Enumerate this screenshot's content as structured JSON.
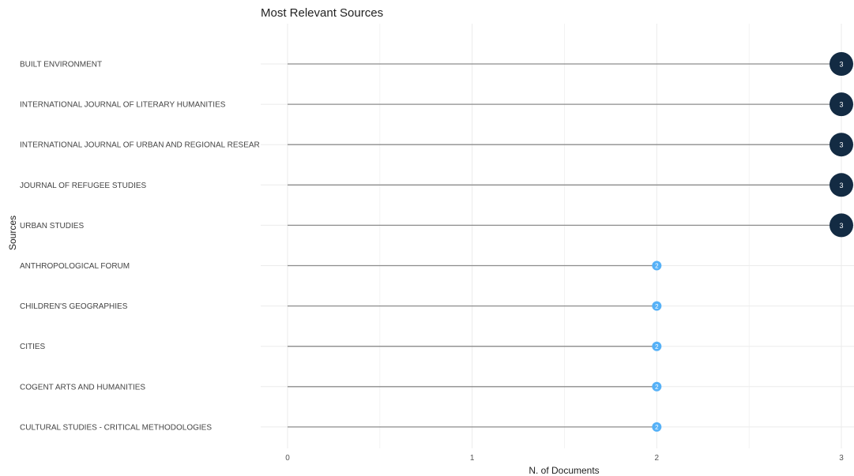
{
  "chart_data": {
    "type": "lollipop",
    "title": "Most Relevant Sources",
    "xlabel": "N. of Documents",
    "ylabel": "Sources",
    "xlim": [
      0,
      3
    ],
    "xticks": [
      "0",
      "1",
      "2",
      "3"
    ],
    "grid": true,
    "legend": "none",
    "colors": {
      "low": "#56b1f7",
      "high": "#132b43",
      "stem": "#8c8c8c",
      "grid": "#ebebeb"
    },
    "categories": [
      "BUILT ENVIRONMENT",
      "INTERNATIONAL JOURNAL OF LITERARY HUMANITIES",
      "INTERNATIONAL JOURNAL OF URBAN AND REGIONAL RESEAR",
      "JOURNAL OF REFUGEE STUDIES",
      "URBAN STUDIES",
      "ANTHROPOLOGICAL FORUM",
      "CHILDREN'S GEOGRAPHIES",
      "CITIES",
      "COGENT ARTS AND HUMANITIES",
      "CULTURAL STUDIES - CRITICAL METHODOLOGIES"
    ],
    "values": [
      3,
      3,
      3,
      3,
      3,
      2,
      2,
      2,
      2,
      2
    ],
    "value_labels": [
      "3",
      "3",
      "3",
      "3",
      "3",
      "2",
      "2",
      "2",
      "2",
      "2"
    ]
  }
}
